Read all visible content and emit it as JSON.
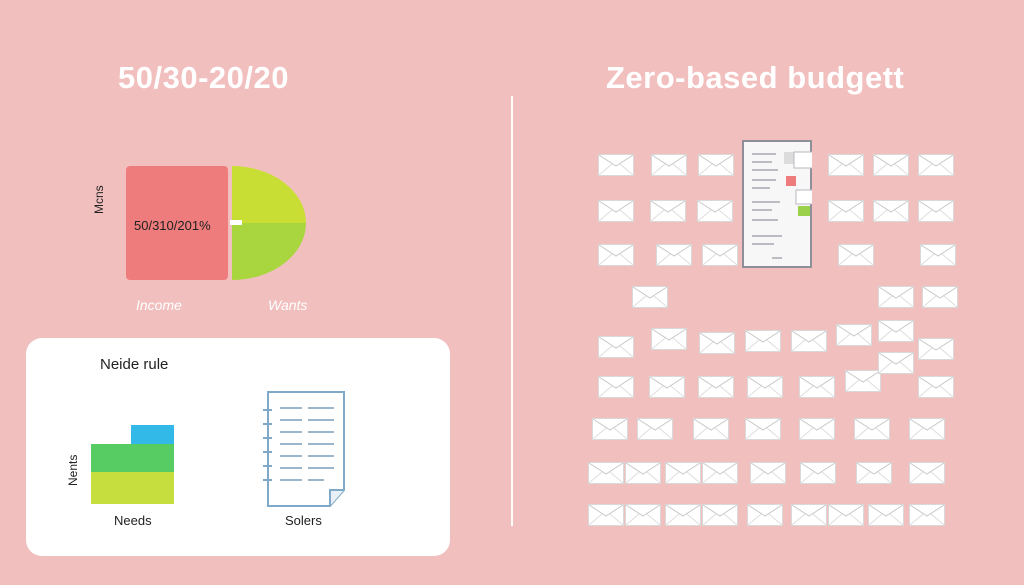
{
  "left_panel": {
    "title": "50/30-20/20",
    "top_graphic": {
      "y_label": "Mcns",
      "ratio_text": "50/310/201%",
      "income_label": "Income",
      "wants_label": "Wants",
      "colors": {
        "red": "#ee7c7c",
        "lime": "#c9de35",
        "green": "#a9d63e"
      }
    },
    "card": {
      "title": "Neide rule",
      "y_label": "Nents",
      "needs_label": "Needs",
      "document_label": "Solers",
      "bar_colors": [
        "#33b9e8",
        "#56cc62",
        "#c6df3e"
      ]
    }
  },
  "right_panel": {
    "title": "Zero-based budgett",
    "center_icon": "document-icon",
    "envelope_icon": "envelope-icon"
  },
  "colors": {
    "background": "#f2bfbf",
    "white": "#ffffff"
  }
}
